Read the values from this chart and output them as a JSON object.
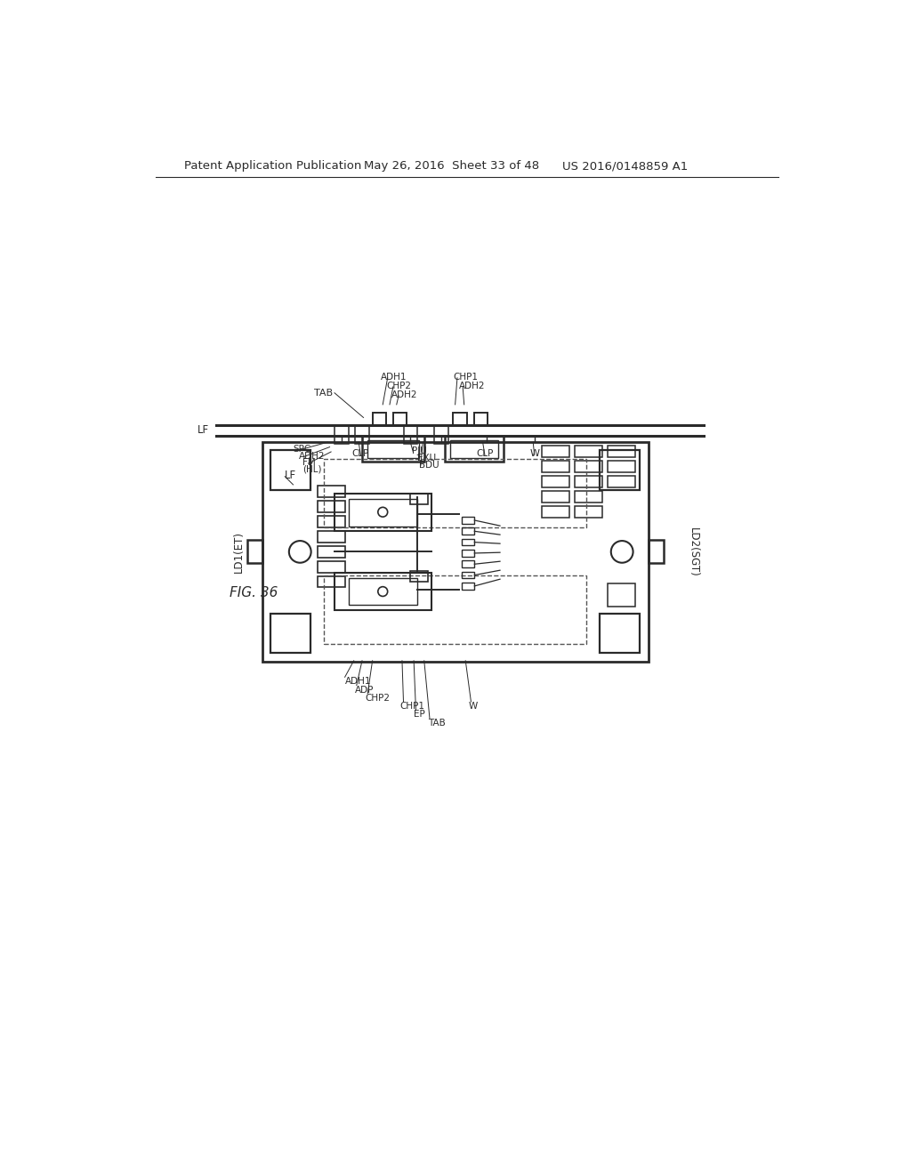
{
  "bg_color": "#ffffff",
  "line_color": "#2a2a2a",
  "header_text": "Patent Application Publication",
  "header_date": "May 26, 2016  Sheet 33 of 48",
  "header_patent": "US 2016/0148859 A1",
  "fig_label": "FIG. 36"
}
